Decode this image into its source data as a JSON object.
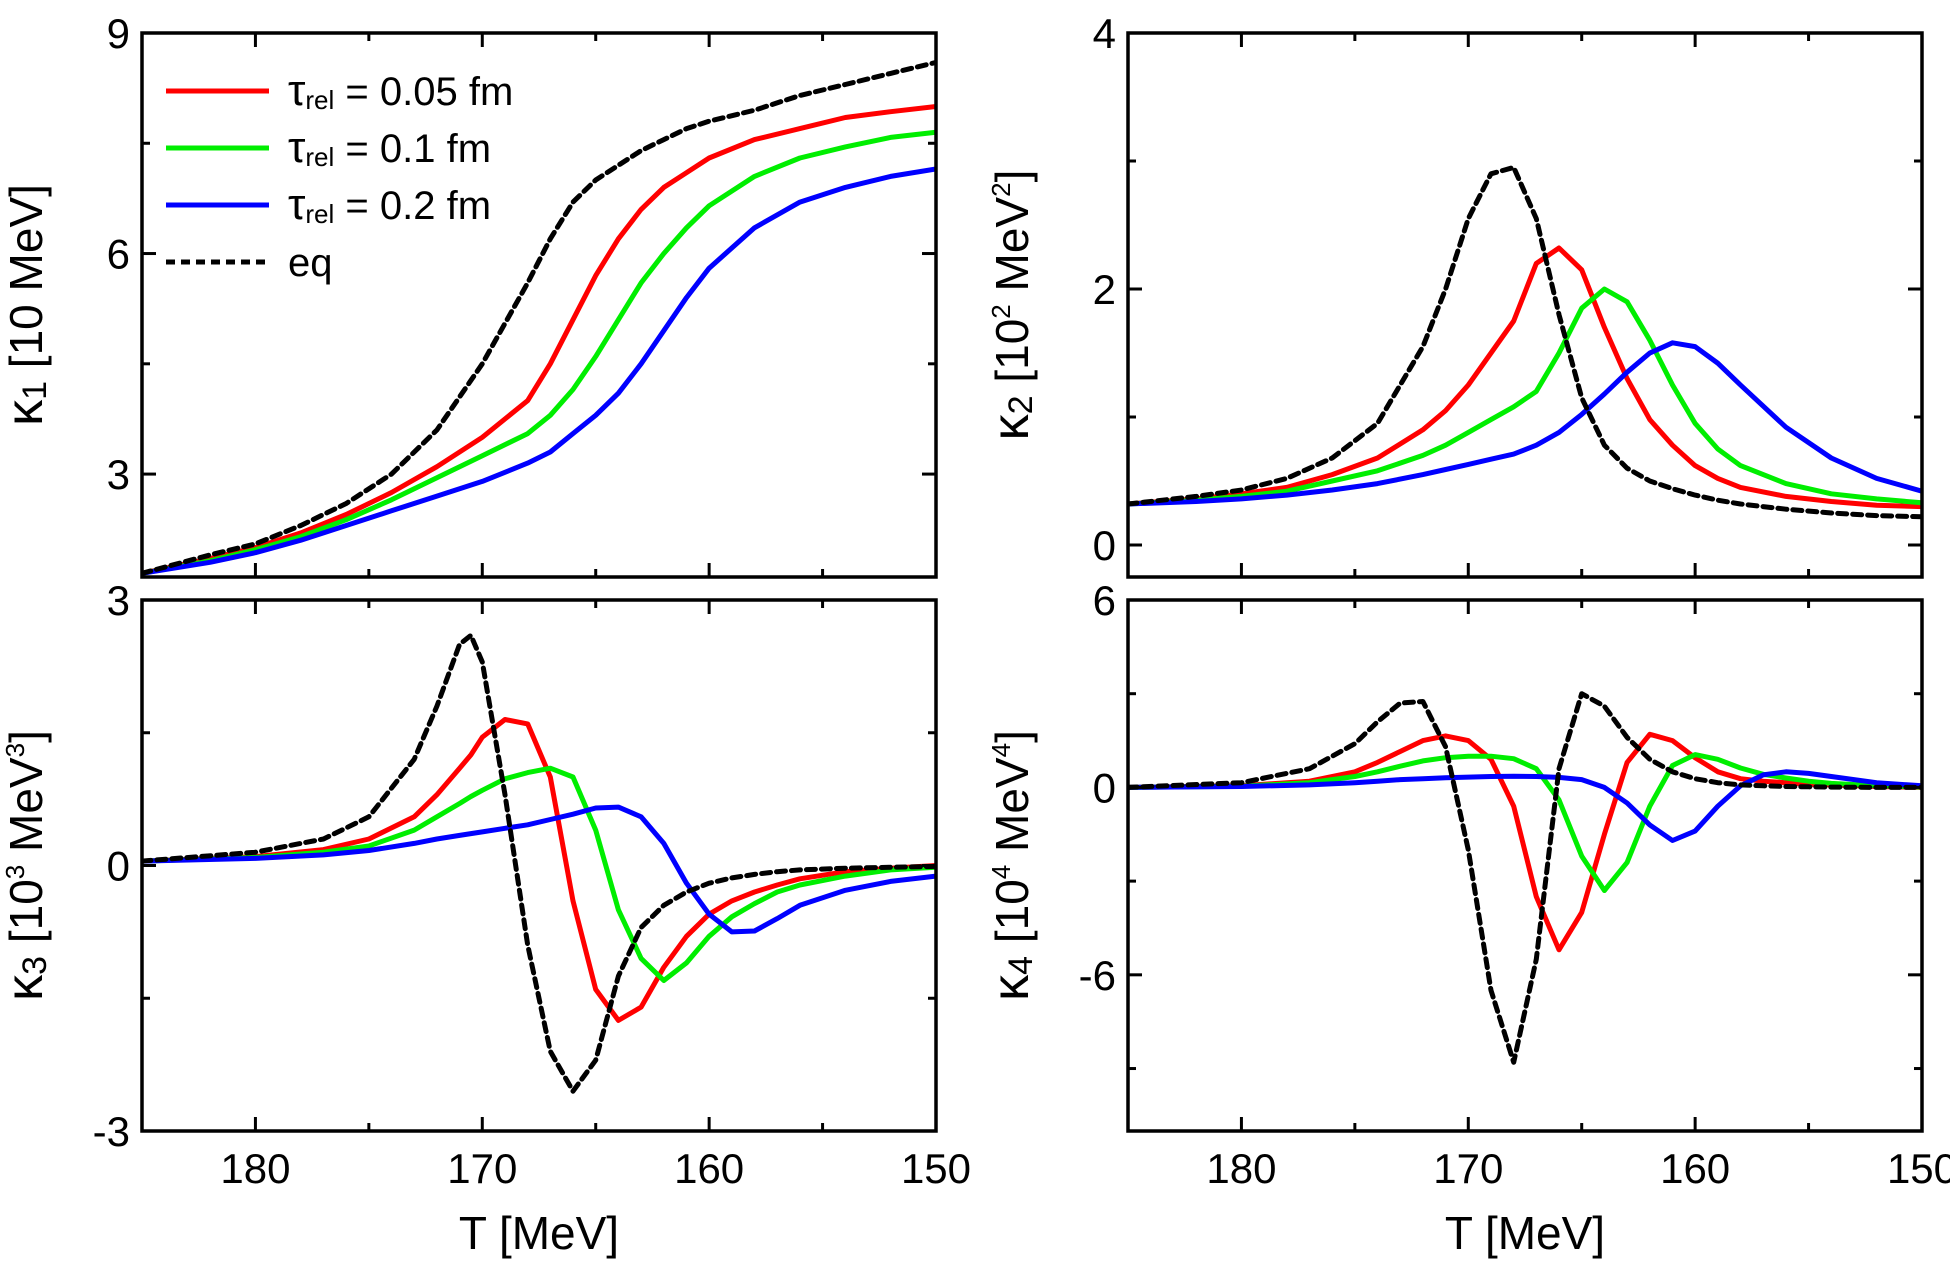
{
  "chart_data": [
    {
      "id": "k1",
      "type": "line",
      "ylabel": {
        "symbol": "κ",
        "sub": "1",
        "unit": " [10 MeV]",
        "sup": ""
      },
      "xlabel": "",
      "xlim": [
        185,
        150
      ],
      "ylim": [
        1.6,
        9
      ],
      "xticks": [
        180,
        170,
        160,
        150
      ],
      "xtick_labels": [
        "",
        "",
        "",
        ""
      ],
      "yticks": [
        3,
        6,
        9
      ],
      "ytick_labels": [
        "3",
        "6",
        "9"
      ],
      "x": [
        185,
        182,
        180,
        178,
        176,
        174,
        172,
        170,
        168,
        167,
        166,
        165,
        164,
        163,
        162,
        161,
        160,
        158,
        156,
        154,
        152,
        150
      ],
      "series": [
        {
          "name": "τrel = 0.05 fm",
          "color": "#ff0000",
          "dash": "",
          "values": [
            1.65,
            1.85,
            2.0,
            2.2,
            2.45,
            2.75,
            3.1,
            3.5,
            4.0,
            4.5,
            5.1,
            5.7,
            6.2,
            6.6,
            6.9,
            7.1,
            7.3,
            7.55,
            7.7,
            7.85,
            7.93,
            8.0
          ]
        },
        {
          "name": "τrel = 0.1 fm",
          "color": "#00ee00",
          "dash": "",
          "values": [
            1.65,
            1.82,
            1.97,
            2.15,
            2.38,
            2.65,
            2.95,
            3.25,
            3.55,
            3.8,
            4.15,
            4.6,
            5.1,
            5.6,
            6.0,
            6.35,
            6.65,
            7.05,
            7.3,
            7.45,
            7.58,
            7.65
          ]
        },
        {
          "name": "τrel = 0.2 fm",
          "color": "#0000ff",
          "dash": "",
          "values": [
            1.65,
            1.8,
            1.93,
            2.1,
            2.3,
            2.5,
            2.7,
            2.9,
            3.15,
            3.3,
            3.55,
            3.8,
            4.1,
            4.5,
            4.95,
            5.4,
            5.8,
            6.35,
            6.7,
            6.9,
            7.05,
            7.15
          ]
        },
        {
          "name": "eq",
          "color": "#000000",
          "dash": "9,6",
          "values": [
            1.65,
            1.9,
            2.05,
            2.3,
            2.6,
            3.0,
            3.6,
            4.5,
            5.6,
            6.2,
            6.7,
            7.0,
            7.2,
            7.4,
            7.55,
            7.7,
            7.8,
            7.95,
            8.15,
            8.3,
            8.45,
            8.6
          ]
        }
      ],
      "legend": {
        "position": "top-left",
        "entries": [
          {
            "prefix": "τ",
            "sub": "rel",
            "text": " = 0.05 fm",
            "color": "#ff0000",
            "dash": ""
          },
          {
            "prefix": "τ",
            "sub": "rel",
            "text": " = 0.1 fm",
            "color": "#00ee00",
            "dash": ""
          },
          {
            "prefix": "τ",
            "sub": "rel",
            "text": " = 0.2 fm",
            "color": "#0000ff",
            "dash": ""
          },
          {
            "prefix": "",
            "sub": "",
            "text": "eq",
            "color": "#000000",
            "dash": "9,6"
          }
        ]
      }
    },
    {
      "id": "k2",
      "type": "line",
      "ylabel": {
        "symbol": "κ",
        "sub": "2",
        "unit": " [10",
        "sup": "2",
        "unit2": " MeV",
        "sup2": "2",
        "unit3": "]"
      },
      "xlabel": "",
      "xlim": [
        185,
        150
      ],
      "ylim": [
        -0.25,
        4
      ],
      "xticks": [
        180,
        170,
        160,
        150
      ],
      "xtick_labels": [
        "",
        "",
        "",
        ""
      ],
      "yticks": [
        0,
        2,
        4
      ],
      "ytick_labels": [
        "0",
        "2",
        "4"
      ],
      "x": [
        185,
        182,
        180,
        178,
        176,
        174,
        172,
        171,
        170,
        169,
        168,
        167,
        166,
        165,
        164,
        163,
        162,
        161,
        160,
        159,
        158,
        156,
        154,
        152,
        150
      ],
      "series": [
        {
          "name": "τrel = 0.05 fm",
          "color": "#ff0000",
          "dash": "",
          "values": [
            0.32,
            0.36,
            0.4,
            0.45,
            0.55,
            0.68,
            0.9,
            1.05,
            1.25,
            1.5,
            1.75,
            2.2,
            2.32,
            2.15,
            1.7,
            1.3,
            0.98,
            0.78,
            0.62,
            0.52,
            0.45,
            0.38,
            0.34,
            0.31,
            0.3
          ]
        },
        {
          "name": "τrel = 0.1 fm",
          "color": "#00ee00",
          "dash": "",
          "values": [
            0.32,
            0.35,
            0.38,
            0.42,
            0.5,
            0.58,
            0.7,
            0.78,
            0.88,
            0.98,
            1.08,
            1.2,
            1.5,
            1.85,
            2.0,
            1.9,
            1.6,
            1.25,
            0.95,
            0.75,
            0.62,
            0.48,
            0.4,
            0.36,
            0.33
          ]
        },
        {
          "name": "τrel = 0.2 fm",
          "color": "#0000ff",
          "dash": "",
          "values": [
            0.32,
            0.34,
            0.36,
            0.39,
            0.43,
            0.48,
            0.55,
            0.59,
            0.63,
            0.67,
            0.71,
            0.78,
            0.88,
            1.02,
            1.18,
            1.35,
            1.5,
            1.58,
            1.55,
            1.42,
            1.25,
            0.92,
            0.68,
            0.52,
            0.42
          ]
        },
        {
          "name": "eq",
          "color": "#000000",
          "dash": "9,6",
          "values": [
            0.32,
            0.38,
            0.43,
            0.52,
            0.68,
            0.95,
            1.55,
            2.0,
            2.55,
            2.9,
            2.95,
            2.55,
            1.8,
            1.15,
            0.78,
            0.6,
            0.5,
            0.44,
            0.39,
            0.35,
            0.32,
            0.28,
            0.25,
            0.23,
            0.22
          ]
        }
      ]
    },
    {
      "id": "k3",
      "type": "line",
      "ylabel": {
        "symbol": "κ",
        "sub": "3",
        "unit": " [10",
        "sup": "3",
        "unit2": " MeV",
        "sup2": "3",
        "unit3": "]"
      },
      "xlabel": "T [MeV]",
      "xlim": [
        185,
        150
      ],
      "ylim": [
        -3,
        3
      ],
      "xticks": [
        180,
        170,
        160,
        150
      ],
      "xtick_labels": [
        "180",
        "170",
        "160",
        "150"
      ],
      "yticks": [
        -3,
        0,
        3
      ],
      "ytick_labels": [
        "-3",
        "0",
        "3"
      ],
      "x": [
        185,
        180,
        177,
        175,
        173,
        172,
        171,
        170.5,
        170,
        169,
        168,
        167,
        166,
        165,
        164,
        163,
        162,
        161,
        160,
        159,
        158,
        157,
        156,
        154,
        152,
        150
      ],
      "series": [
        {
          "name": "τrel = 0.05 fm",
          "color": "#ff0000",
          "dash": "",
          "values": [
            0.05,
            0.1,
            0.18,
            0.3,
            0.55,
            0.8,
            1.1,
            1.25,
            1.45,
            1.65,
            1.6,
            1.0,
            -0.4,
            -1.4,
            -1.75,
            -1.6,
            -1.15,
            -0.8,
            -0.55,
            -0.4,
            -0.3,
            -0.22,
            -0.15,
            -0.07,
            -0.03,
            0.0
          ]
        },
        {
          "name": "τrel = 0.1 fm",
          "color": "#00ee00",
          "dash": "",
          "values": [
            0.05,
            0.09,
            0.15,
            0.22,
            0.4,
            0.55,
            0.7,
            0.78,
            0.85,
            0.98,
            1.05,
            1.1,
            1.0,
            0.4,
            -0.5,
            -1.05,
            -1.3,
            -1.1,
            -0.8,
            -0.58,
            -0.43,
            -0.3,
            -0.22,
            -0.12,
            -0.05,
            -0.02
          ]
        },
        {
          "name": "τrel = 0.2 fm",
          "color": "#0000ff",
          "dash": "",
          "values": [
            0.05,
            0.08,
            0.12,
            0.17,
            0.25,
            0.3,
            0.34,
            0.36,
            0.38,
            0.42,
            0.46,
            0.52,
            0.58,
            0.65,
            0.66,
            0.55,
            0.25,
            -0.2,
            -0.55,
            -0.75,
            -0.74,
            -0.6,
            -0.45,
            -0.28,
            -0.18,
            -0.12
          ]
        },
        {
          "name": "eq",
          "color": "#000000",
          "dash": "9,6",
          "values": [
            0.05,
            0.15,
            0.3,
            0.55,
            1.2,
            1.8,
            2.5,
            2.6,
            2.3,
            0.8,
            -0.9,
            -2.1,
            -2.55,
            -2.2,
            -1.25,
            -0.7,
            -0.45,
            -0.3,
            -0.2,
            -0.14,
            -0.1,
            -0.07,
            -0.05,
            -0.03,
            -0.02,
            -0.01
          ]
        }
      ]
    },
    {
      "id": "k4",
      "type": "line",
      "ylabel": {
        "symbol": "κ",
        "sub": "4",
        "unit": " [10",
        "sup": "4",
        "unit2": " MeV",
        "sup2": "4",
        "unit3": "]"
      },
      "xlabel": "T [MeV]",
      "xlim": [
        185,
        150
      ],
      "ylim": [
        -11,
        6
      ],
      "xticks": [
        180,
        170,
        160,
        150
      ],
      "xtick_labels": [
        "180",
        "170",
        "160",
        "150"
      ],
      "yticks": [
        -6,
        0,
        6
      ],
      "ytick_labels": [
        "-6",
        "0",
        "6"
      ],
      "x": [
        185,
        180,
        177,
        175,
        174,
        173,
        172,
        171,
        170,
        169,
        168,
        167,
        166,
        165,
        164,
        163,
        162,
        161,
        160,
        159,
        158,
        157,
        156,
        155,
        154,
        152,
        150
      ],
      "series": [
        {
          "name": "τrel = 0.05 fm",
          "color": "#ff0000",
          "dash": "",
          "values": [
            0,
            0.05,
            0.2,
            0.5,
            0.8,
            1.15,
            1.5,
            1.65,
            1.5,
            0.9,
            -0.6,
            -3.5,
            -5.2,
            -4.0,
            -1.5,
            0.8,
            1.7,
            1.5,
            0.95,
            0.5,
            0.28,
            0.2,
            0.15,
            0.1,
            0.08,
            0.03,
            0.0
          ]
        },
        {
          "name": "τrel = 0.1 fm",
          "color": "#00ee00",
          "dash": "",
          "values": [
            0,
            0.04,
            0.15,
            0.35,
            0.5,
            0.68,
            0.85,
            0.95,
            1.0,
            1.0,
            0.92,
            0.6,
            -0.4,
            -2.2,
            -3.3,
            -2.4,
            -0.6,
            0.7,
            1.05,
            0.9,
            0.62,
            0.42,
            0.3,
            0.2,
            0.13,
            0.05,
            0.01
          ]
        },
        {
          "name": "τrel = 0.2 fm",
          "color": "#0000ff",
          "dash": "",
          "values": [
            0,
            0.03,
            0.08,
            0.15,
            0.2,
            0.25,
            0.28,
            0.31,
            0.33,
            0.35,
            0.36,
            0.35,
            0.32,
            0.25,
            0.0,
            -0.5,
            -1.2,
            -1.7,
            -1.4,
            -0.6,
            0.05,
            0.4,
            0.5,
            0.45,
            0.35,
            0.15,
            0.05
          ]
        },
        {
          "name": "eq",
          "color": "#000000",
          "dash": "9,6",
          "values": [
            0,
            0.15,
            0.6,
            1.4,
            2.1,
            2.7,
            2.75,
            1.3,
            -2.0,
            -6.5,
            -8.8,
            -5.5,
            0.6,
            3.0,
            2.6,
            1.6,
            0.9,
            0.5,
            0.28,
            0.15,
            0.08,
            0.05,
            0.03,
            0.02,
            0.01,
            0.0,
            0.0
          ]
        }
      ]
    }
  ]
}
